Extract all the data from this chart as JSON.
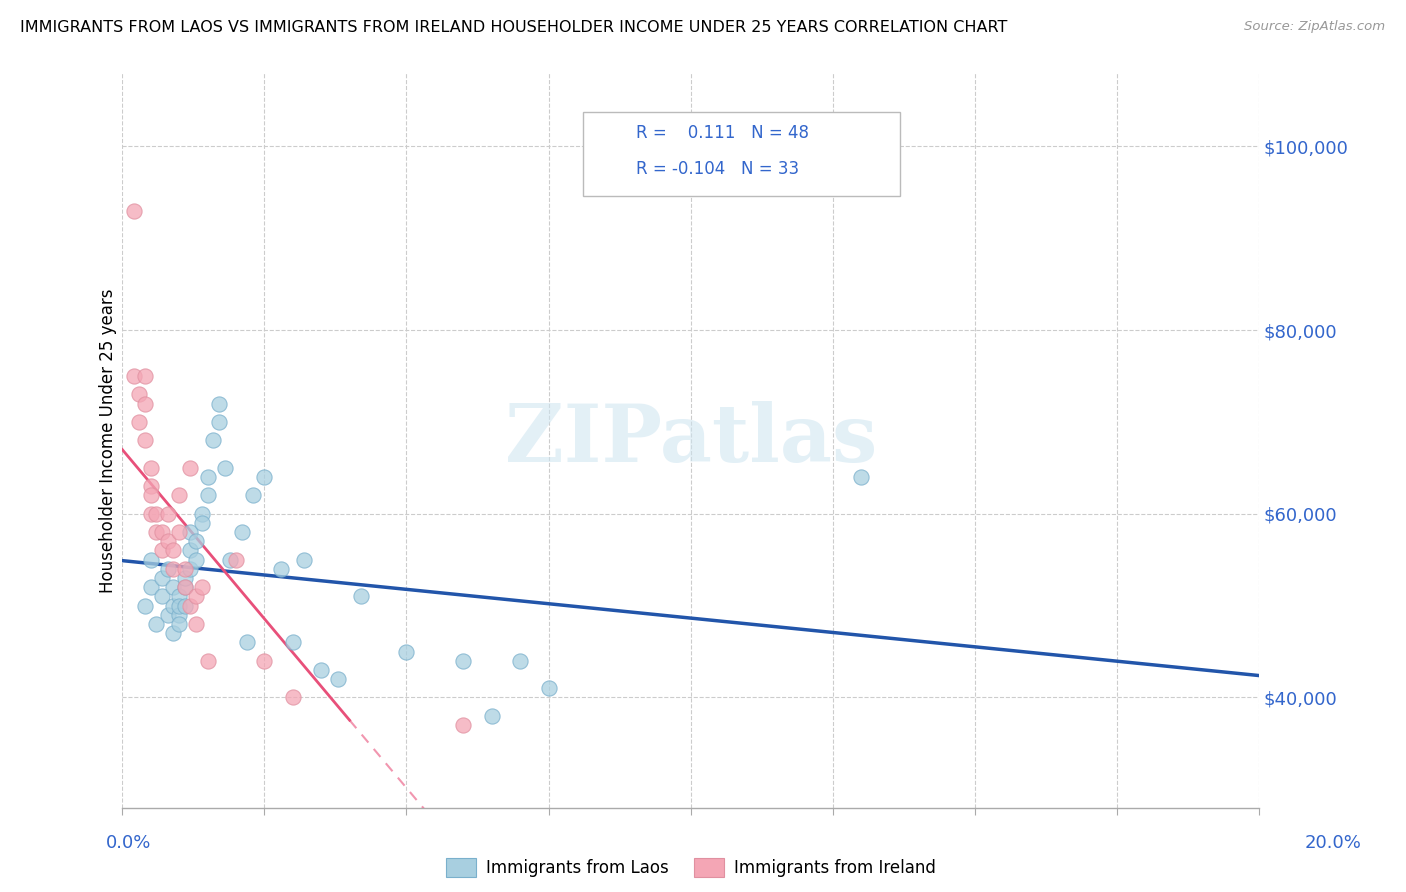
{
  "title": "IMMIGRANTS FROM LAOS VS IMMIGRANTS FROM IRELAND HOUSEHOLDER INCOME UNDER 25 YEARS CORRELATION CHART",
  "source": "Source: ZipAtlas.com",
  "ylabel": "Householder Income Under 25 years",
  "y_ticks": [
    40000,
    60000,
    80000,
    100000
  ],
  "y_tick_labels": [
    "$40,000",
    "$60,000",
    "$80,000",
    "$100,000"
  ],
  "xlim": [
    0.0,
    0.2
  ],
  "ylim": [
    28000,
    108000
  ],
  "legend_r_laos": "0.111",
  "legend_n_laos": "48",
  "legend_r_ireland": "-0.104",
  "legend_n_ireland": "33",
  "laos_color": "#a8cfe0",
  "ireland_color": "#f4a6b5",
  "laos_line_color": "#2255aa",
  "ireland_line_color": "#e8507a",
  "watermark": "ZIPatlas",
  "laos_x": [
    0.004,
    0.005,
    0.005,
    0.006,
    0.007,
    0.007,
    0.008,
    0.008,
    0.009,
    0.009,
    0.009,
    0.01,
    0.01,
    0.01,
    0.01,
    0.011,
    0.011,
    0.011,
    0.012,
    0.012,
    0.012,
    0.013,
    0.013,
    0.014,
    0.014,
    0.015,
    0.015,
    0.016,
    0.017,
    0.017,
    0.018,
    0.019,
    0.021,
    0.022,
    0.023,
    0.025,
    0.028,
    0.03,
    0.032,
    0.035,
    0.038,
    0.042,
    0.05,
    0.06,
    0.065,
    0.07,
    0.075,
    0.13
  ],
  "laos_y": [
    50000,
    52000,
    55000,
    48000,
    51000,
    53000,
    49000,
    54000,
    50000,
    52000,
    47000,
    51000,
    49000,
    50000,
    48000,
    52000,
    50000,
    53000,
    54000,
    56000,
    58000,
    55000,
    57000,
    60000,
    59000,
    62000,
    64000,
    68000,
    70000,
    72000,
    65000,
    55000,
    58000,
    46000,
    62000,
    64000,
    54000,
    46000,
    55000,
    43000,
    42000,
    51000,
    45000,
    44000,
    38000,
    44000,
    41000,
    64000
  ],
  "ireland_x": [
    0.002,
    0.002,
    0.003,
    0.003,
    0.004,
    0.004,
    0.004,
    0.005,
    0.005,
    0.005,
    0.005,
    0.006,
    0.006,
    0.007,
    0.007,
    0.008,
    0.008,
    0.009,
    0.009,
    0.01,
    0.01,
    0.011,
    0.011,
    0.012,
    0.012,
    0.013,
    0.013,
    0.014,
    0.015,
    0.02,
    0.025,
    0.03,
    0.06
  ],
  "ireland_y": [
    93000,
    75000,
    70000,
    73000,
    68000,
    72000,
    75000,
    63000,
    65000,
    60000,
    62000,
    58000,
    60000,
    56000,
    58000,
    57000,
    60000,
    54000,
    56000,
    58000,
    62000,
    52000,
    54000,
    50000,
    65000,
    48000,
    51000,
    52000,
    44000,
    55000,
    44000,
    40000,
    37000
  ]
}
